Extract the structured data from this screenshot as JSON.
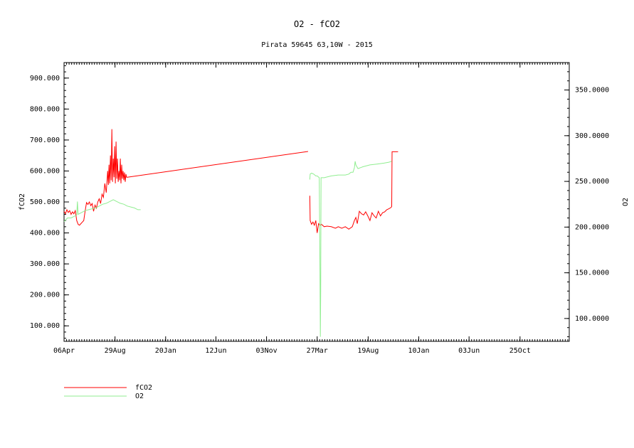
{
  "chart_data": {
    "type": "line",
    "title": "O2 - fCO2",
    "subtitle": "Pirata 59645 63,10W - 2015",
    "ylabel_left": "fCO2",
    "ylabel_right": "O2",
    "x_tick_labels": [
      "06Apr",
      "29Aug",
      "20Jan",
      "12Jun",
      "03Nov",
      "27Mar",
      "19Aug",
      "10Jan",
      "03Jun",
      "25Oct"
    ],
    "x_tick_days": [
      0,
      145,
      289,
      432,
      576,
      720,
      865,
      1009,
      1152,
      1297
    ],
    "xlim_days": [
      0,
      1437
    ],
    "y_left": {
      "ylim": [
        50,
        950
      ],
      "ticks": [
        100,
        200,
        300,
        400,
        500,
        600,
        700,
        800,
        900
      ],
      "tick_labels": [
        "100.000",
        "200.000",
        "300.000",
        "400.000",
        "500.000",
        "600.000",
        "700.000",
        "800.000",
        "900.000"
      ]
    },
    "y_right": {
      "ylim": [
        75,
        380
      ],
      "ticks": [
        100,
        150,
        200,
        250,
        300,
        350
      ],
      "tick_labels": [
        "100.0000",
        "150.0000",
        "200.0000",
        "250.0000",
        "300.0000",
        "350.0000"
      ]
    },
    "legend_position": "bottom-left",
    "series": [
      {
        "name": "fCO2",
        "color": "#ff0000",
        "axis": "left",
        "points": [
          [
            0,
            470
          ],
          [
            4,
            462
          ],
          [
            8,
            475
          ],
          [
            12,
            466
          ],
          [
            16,
            472
          ],
          [
            20,
            460
          ],
          [
            24,
            468
          ],
          [
            28,
            462
          ],
          [
            32,
            472
          ],
          [
            36,
            440
          ],
          [
            40,
            428
          ],
          [
            44,
            425
          ],
          [
            48,
            430
          ],
          [
            52,
            435
          ],
          [
            56,
            440
          ],
          [
            60,
            470
          ],
          [
            64,
            498
          ],
          [
            68,
            492
          ],
          [
            72,
            500
          ],
          [
            76,
            488
          ],
          [
            80,
            495
          ],
          [
            84,
            470
          ],
          [
            88,
            490
          ],
          [
            92,
            480
          ],
          [
            96,
            500
          ],
          [
            100,
            510
          ],
          [
            104,
            495
          ],
          [
            108,
            525
          ],
          [
            112,
            515
          ],
          [
            116,
            560
          ],
          [
            120,
            530
          ],
          [
            124,
            600
          ],
          [
            126,
            555
          ],
          [
            128,
            620
          ],
          [
            130,
            560
          ],
          [
            132,
            650
          ],
          [
            134,
            570
          ],
          [
            136,
            735
          ],
          [
            138,
            565
          ],
          [
            140,
            640
          ],
          [
            142,
            580
          ],
          [
            144,
            680
          ],
          [
            146,
            560
          ],
          [
            148,
            695
          ],
          [
            150,
            575
          ],
          [
            152,
            640
          ],
          [
            154,
            565
          ],
          [
            156,
            600
          ],
          [
            158,
            570
          ],
          [
            160,
            640
          ],
          [
            162,
            560
          ],
          [
            164,
            620
          ],
          [
            166,
            575
          ],
          [
            168,
            600
          ],
          [
            170,
            570
          ],
          [
            172,
            595
          ],
          [
            174,
            565
          ],
          [
            176,
            590
          ],
          [
            178,
            580
          ],
          [
            180,
            580
          ],
          [
            694,
            663
          ],
          null,
          [
            699,
            520
          ],
          [
            700,
            440
          ],
          [
            704,
            428
          ],
          [
            708,
            435
          ],
          [
            712,
            425
          ],
          [
            716,
            440
          ],
          [
            720,
            400
          ],
          [
            724,
            430
          ],
          [
            728,
            425
          ],
          [
            732,
            428
          ],
          [
            740,
            420
          ],
          [
            748,
            422
          ],
          [
            760,
            420
          ],
          [
            772,
            415
          ],
          [
            780,
            420
          ],
          [
            790,
            415
          ],
          [
            800,
            420
          ],
          [
            810,
            412
          ],
          [
            820,
            420
          ],
          [
            826,
            440
          ],
          [
            830,
            450
          ],
          [
            834,
            430
          ],
          [
            840,
            470
          ],
          [
            846,
            462
          ],
          [
            852,
            458
          ],
          [
            858,
            468
          ],
          [
            864,
            455
          ],
          [
            870,
            440
          ],
          [
            876,
            465
          ],
          [
            882,
            455
          ],
          [
            888,
            448
          ],
          [
            894,
            470
          ],
          [
            900,
            455
          ],
          [
            906,
            465
          ],
          [
            912,
            468
          ],
          [
            918,
            475
          ],
          [
            924,
            478
          ],
          [
            930,
            482
          ],
          [
            932,
            485
          ],
          [
            933,
            662
          ],
          [
            950,
            662
          ]
        ]
      },
      {
        "name": "O2",
        "color": "#90ee90",
        "axis": "right",
        "points": [
          [
            0,
            206
          ],
          [
            10,
            210
          ],
          [
            20,
            210
          ],
          [
            30,
            212
          ],
          [
            36,
            213
          ],
          [
            38,
            228
          ],
          [
            40,
            214
          ],
          [
            50,
            216
          ],
          [
            60,
            218
          ],
          [
            70,
            219
          ],
          [
            80,
            220
          ],
          [
            90,
            221
          ],
          [
            100,
            223
          ],
          [
            110,
            225
          ],
          [
            120,
            226
          ],
          [
            130,
            228
          ],
          [
            140,
            230
          ],
          [
            150,
            228
          ],
          [
            160,
            226
          ],
          [
            170,
            225
          ],
          [
            180,
            223
          ],
          [
            190,
            222
          ],
          [
            200,
            221
          ],
          [
            210,
            219
          ],
          [
            218,
            219
          ],
          null,
          [
            699,
            252
          ],
          [
            700,
            258
          ],
          [
            704,
            259
          ],
          [
            710,
            258
          ],
          [
            716,
            256
          ],
          [
            720,
            256
          ],
          [
            726,
            254
          ],
          [
            728,
            150
          ],
          [
            729,
            80
          ],
          [
            730,
            130
          ],
          [
            731,
            254
          ],
          [
            740,
            254
          ],
          [
            760,
            256
          ],
          [
            780,
            257
          ],
          [
            800,
            257
          ],
          [
            810,
            258
          ],
          [
            816,
            260
          ],
          [
            822,
            260
          ],
          [
            826,
            265
          ],
          [
            828,
            272
          ],
          [
            830,
            268
          ],
          [
            836,
            264
          ],
          [
            850,
            266
          ],
          [
            870,
            268
          ],
          [
            890,
            269
          ],
          [
            910,
            270
          ],
          [
            924,
            271
          ],
          [
            932,
            272
          ]
        ]
      }
    ]
  }
}
